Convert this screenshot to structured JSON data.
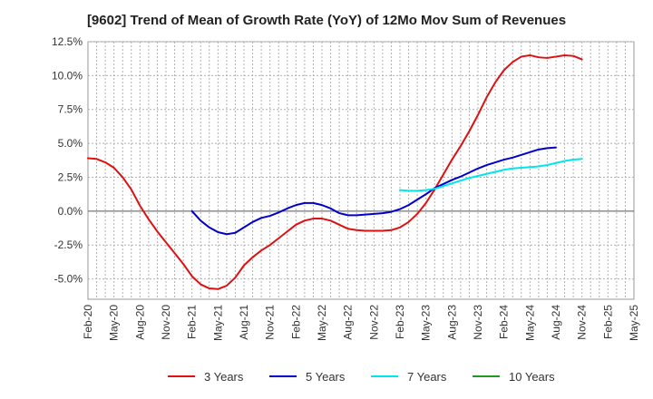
{
  "chart_data": {
    "type": "line",
    "title": "[9602]  Trend of Mean of Growth Rate (YoY) of 12Mo Mov Sum of Revenues",
    "xlabel": "",
    "ylabel": "",
    "ylim": [
      -6.5,
      12.5
    ],
    "y_ticks": [
      {
        "value": 12.5,
        "label": "12.5%"
      },
      {
        "value": 10.0,
        "label": "10.0%"
      },
      {
        "value": 7.5,
        "label": "7.5%"
      },
      {
        "value": 5.0,
        "label": "5.0%"
      },
      {
        "value": 2.5,
        "label": "2.5%"
      },
      {
        "value": 0.0,
        "label": "0.0%"
      },
      {
        "value": -2.5,
        "label": "-2.5%"
      },
      {
        "value": -5.0,
        "label": "-5.0%"
      }
    ],
    "x_range": [
      0,
      63
    ],
    "x_ticks": [
      {
        "index": 0,
        "label": "Feb-20"
      },
      {
        "index": 3,
        "label": "May-20"
      },
      {
        "index": 6,
        "label": "Aug-20"
      },
      {
        "index": 9,
        "label": "Nov-20"
      },
      {
        "index": 12,
        "label": "Feb-21"
      },
      {
        "index": 15,
        "label": "May-21"
      },
      {
        "index": 18,
        "label": "Aug-21"
      },
      {
        "index": 21,
        "label": "Nov-21"
      },
      {
        "index": 24,
        "label": "Feb-22"
      },
      {
        "index": 27,
        "label": "May-22"
      },
      {
        "index": 30,
        "label": "Aug-22"
      },
      {
        "index": 33,
        "label": "Nov-22"
      },
      {
        "index": 36,
        "label": "Feb-23"
      },
      {
        "index": 39,
        "label": "May-23"
      },
      {
        "index": 42,
        "label": "Aug-23"
      },
      {
        "index": 45,
        "label": "Nov-23"
      },
      {
        "index": 48,
        "label": "Feb-24"
      },
      {
        "index": 51,
        "label": "May-24"
      },
      {
        "index": 54,
        "label": "Aug-24"
      },
      {
        "index": 57,
        "label": "Nov-24"
      },
      {
        "index": 60,
        "label": "Feb-25"
      },
      {
        "index": 63,
        "label": "May-25"
      }
    ],
    "grid": true,
    "legend_position": "bottom",
    "series": [
      {
        "name": "3 Years",
        "color": "#dd1111",
        "start_index": 0,
        "values": [
          3.9,
          3.85,
          3.6,
          3.2,
          2.5,
          1.6,
          0.4,
          -0.6,
          -1.5,
          -2.3,
          -3.1,
          -3.9,
          -4.8,
          -5.4,
          -5.7,
          -5.75,
          -5.5,
          -4.9,
          -4.0,
          -3.4,
          -2.9,
          -2.5,
          -2.0,
          -1.5,
          -1.0,
          -0.7,
          -0.55,
          -0.55,
          -0.7,
          -1.0,
          -1.3,
          -1.4,
          -1.45,
          -1.45,
          -1.45,
          -1.4,
          -1.2,
          -0.8,
          -0.2,
          0.6,
          1.6,
          2.7,
          3.8,
          4.8,
          5.9,
          7.1,
          8.4,
          9.5,
          10.4,
          11.0,
          11.4,
          11.5,
          11.35,
          11.3,
          11.4,
          11.5,
          11.45,
          11.2
        ]
      },
      {
        "name": "5 Years",
        "color": "#0000cc",
        "start_index": 12,
        "values": [
          0.0,
          -0.7,
          -1.2,
          -1.55,
          -1.7,
          -1.6,
          -1.2,
          -0.8,
          -0.5,
          -0.35,
          -0.1,
          0.2,
          0.45,
          0.6,
          0.6,
          0.45,
          0.2,
          -0.15,
          -0.3,
          -0.3,
          -0.25,
          -0.2,
          -0.15,
          -0.05,
          0.15,
          0.45,
          0.85,
          1.25,
          1.7,
          2.0,
          2.3,
          2.55,
          2.85,
          3.15,
          3.4,
          3.6,
          3.8,
          3.95,
          4.15,
          4.35,
          4.55,
          4.65,
          4.7
        ]
      },
      {
        "name": "7 Years",
        "color": "#00e5ee",
        "start_index": 36,
        "values": [
          1.55,
          1.5,
          1.5,
          1.55,
          1.65,
          1.85,
          2.05,
          2.25,
          2.45,
          2.6,
          2.75,
          2.9,
          3.05,
          3.15,
          3.2,
          3.25,
          3.3,
          3.4,
          3.55,
          3.7,
          3.8,
          3.85
        ]
      },
      {
        "name": "10 Years",
        "color": "#229922",
        "start_index": 0,
        "values": []
      }
    ]
  }
}
